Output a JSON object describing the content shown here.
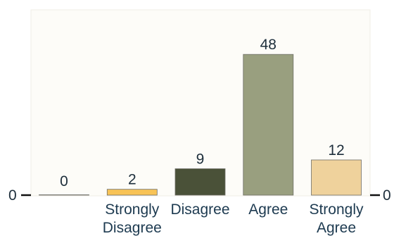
{
  "chart_data": {
    "type": "bar",
    "categories": [
      "",
      "Strongly Disagree",
      "Disagree",
      "Agree",
      "Strongly Agree"
    ],
    "category_lines": [
      [
        ""
      ],
      [
        "Strongly",
        "Disagree"
      ],
      [
        "Disagree"
      ],
      [
        "Agree"
      ],
      [
        "Strongly",
        "Agree"
      ]
    ],
    "values": [
      0,
      2,
      9,
      48,
      12
    ],
    "value_labels": [
      "0",
      "2",
      "9",
      "48",
      "12"
    ],
    "colors": [
      "#f6d889",
      "#f8c356",
      "#4a5138",
      "#999f7f",
      "#efd29c"
    ],
    "ylim": [
      0,
      52
    ],
    "y_ticks_left": [
      "0"
    ],
    "y_ticks_right": [
      "0"
    ],
    "title": "",
    "xlabel": "",
    "ylabel": "",
    "grid": false,
    "legend": "none"
  }
}
